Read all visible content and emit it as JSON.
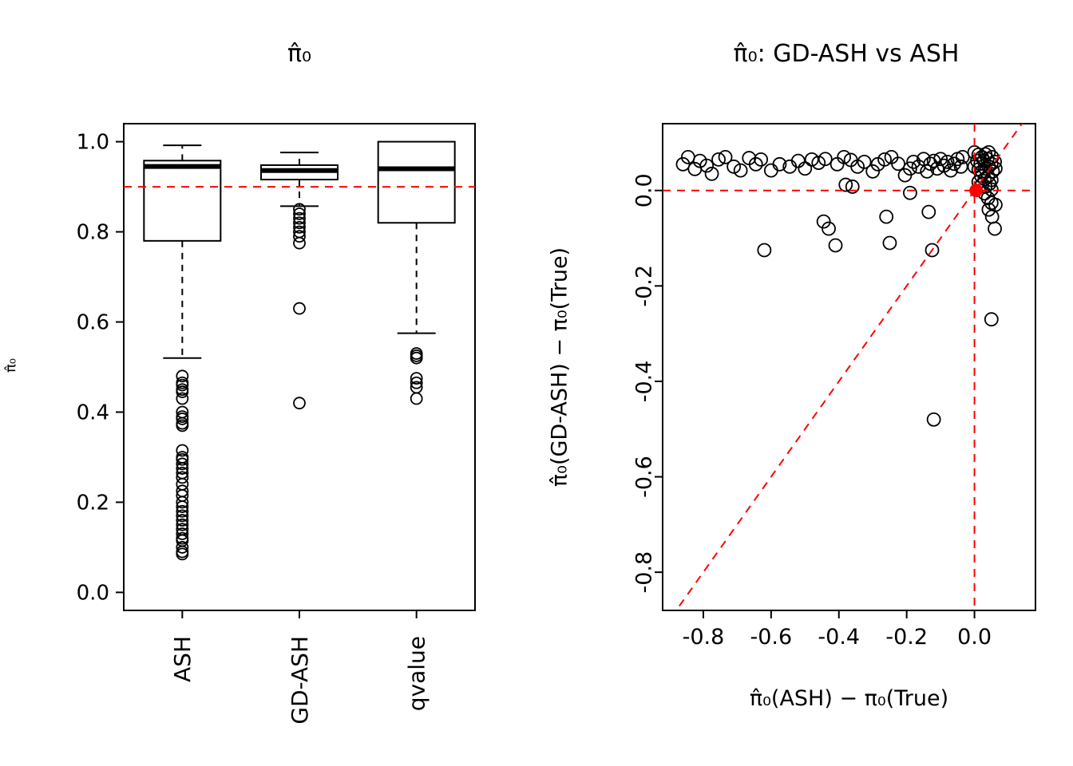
{
  "page": {
    "background": "#ffffff",
    "text_color": "#000000",
    "accent_color": "#ff0000"
  },
  "chart_data": [
    {
      "type": "boxplot",
      "title": "π̂₀",
      "ylabel": "π̂₀",
      "ylim": [
        -0.04,
        1.04
      ],
      "yticks": [
        0.0,
        0.2,
        0.4,
        0.6,
        0.8,
        1.0
      ],
      "categories": [
        "ASH",
        "GD-ASH",
        "qvalue"
      ],
      "reference_line": {
        "y": 0.9,
        "color": "#ff0000",
        "style": "dashed"
      },
      "boxes": [
        {
          "label": "ASH",
          "whisker_low": 0.52,
          "q1": 0.78,
          "median": 0.945,
          "q3": 0.958,
          "whisker_high": 0.992,
          "outliers": [
            0.48,
            0.465,
            0.46,
            0.45,
            0.445,
            0.43,
            0.4,
            0.39,
            0.385,
            0.375,
            0.37,
            0.315,
            0.3,
            0.295,
            0.285,
            0.275,
            0.265,
            0.255,
            0.24,
            0.225,
            0.215,
            0.2,
            0.19,
            0.18,
            0.17,
            0.16,
            0.15,
            0.14,
            0.13,
            0.12,
            0.115,
            0.1,
            0.09,
            0.085
          ]
        },
        {
          "label": "GD-ASH",
          "whisker_low": 0.857,
          "q1": 0.916,
          "median": 0.936,
          "q3": 0.948,
          "whisker_high": 0.976,
          "outliers": [
            0.85,
            0.84,
            0.83,
            0.82,
            0.81,
            0.8,
            0.79,
            0.775,
            0.63,
            0.42
          ]
        },
        {
          "label": "qvalue",
          "whisker_low": 0.575,
          "q1": 0.82,
          "median": 0.94,
          "q3": 1.0,
          "whisker_high": 1.0,
          "outliers": [
            0.53,
            0.525,
            0.52,
            0.475,
            0.465,
            0.455,
            0.43
          ]
        }
      ]
    },
    {
      "type": "scatter",
      "title": "π̂₀: GD-ASH vs ASH",
      "xlabel": "π̂₀(ASH) − π₀(True)",
      "ylabel": "π̂₀(GD-ASH) − π₀(True)",
      "xlim": [
        -0.92,
        0.18
      ],
      "ylim": [
        -0.88,
        0.14
      ],
      "xticks": [
        -0.8,
        -0.6,
        -0.4,
        -0.2,
        0.0
      ],
      "yticks": [
        -0.8,
        -0.6,
        -0.4,
        -0.2,
        0.0
      ],
      "marker": "open-circle",
      "reference_lines": [
        {
          "kind": "horizontal",
          "y": 0.0,
          "color": "#ff0000",
          "style": "dashed"
        },
        {
          "kind": "vertical",
          "x": 0.0,
          "color": "#ff0000",
          "style": "dashed"
        },
        {
          "kind": "diagonal",
          "equation": "y = x",
          "color": "#ff0000",
          "style": "dashed"
        }
      ],
      "points": [
        [
          -0.86,
          0.055
        ],
        [
          -0.845,
          0.07
        ],
        [
          -0.825,
          0.045
        ],
        [
          -0.81,
          0.062
        ],
        [
          -0.79,
          0.052
        ],
        [
          -0.775,
          0.035
        ],
        [
          -0.755,
          0.065
        ],
        [
          -0.735,
          0.07
        ],
        [
          -0.71,
          0.05
        ],
        [
          -0.69,
          0.042
        ],
        [
          -0.665,
          0.068
        ],
        [
          -0.645,
          0.055
        ],
        [
          -0.63,
          0.065
        ],
        [
          -0.6,
          0.042
        ],
        [
          -0.575,
          0.055
        ],
        [
          -0.545,
          0.05
        ],
        [
          -0.52,
          0.062
        ],
        [
          -0.5,
          0.046
        ],
        [
          -0.48,
          0.065
        ],
        [
          -0.46,
          0.058
        ],
        [
          -0.44,
          0.066
        ],
        [
          -0.405,
          0.055
        ],
        [
          -0.385,
          0.07
        ],
        [
          -0.365,
          0.064
        ],
        [
          -0.345,
          0.05
        ],
        [
          -0.325,
          0.06
        ],
        [
          -0.3,
          0.04
        ],
        [
          -0.285,
          0.055
        ],
        [
          -0.265,
          0.065
        ],
        [
          -0.245,
          0.07
        ],
        [
          -0.225,
          0.056
        ],
        [
          -0.205,
          0.032
        ],
        [
          -0.19,
          0.046
        ],
        [
          -0.18,
          0.06
        ],
        [
          -0.165,
          0.05
        ],
        [
          -0.15,
          0.066
        ],
        [
          -0.14,
          0.04
        ],
        [
          -0.13,
          0.056
        ],
        [
          -0.12,
          0.062
        ],
        [
          -0.11,
          0.046
        ],
        [
          -0.1,
          0.066
        ],
        [
          -0.09,
          0.052
        ],
        [
          -0.08,
          0.06
        ],
        [
          -0.07,
          0.042
        ],
        [
          -0.06,
          0.056
        ],
        [
          -0.05,
          0.066
        ],
        [
          -0.04,
          0.05
        ],
        [
          -0.035,
          0.07
        ],
        [
          -0.38,
          0.012
        ],
        [
          -0.36,
          0.008
        ],
        [
          -0.19,
          -0.005
        ],
        [
          0.0,
          0.08
        ],
        [
          0.012,
          0.075
        ],
        [
          0.022,
          0.07
        ],
        [
          0.032,
          0.076
        ],
        [
          0.042,
          0.08
        ],
        [
          0.052,
          0.07
        ],
        [
          0.008,
          0.062
        ],
        [
          0.018,
          0.056
        ],
        [
          0.028,
          0.062
        ],
        [
          0.038,
          0.066
        ],
        [
          0.05,
          0.056
        ],
        [
          0.06,
          0.06
        ],
        [
          0.0,
          0.05
        ],
        [
          0.012,
          0.044
        ],
        [
          0.022,
          0.04
        ],
        [
          0.032,
          0.046
        ],
        [
          0.042,
          0.05
        ],
        [
          0.054,
          0.04
        ],
        [
          0.062,
          0.046
        ],
        [
          0.02,
          0.03
        ],
        [
          0.03,
          0.024
        ],
        [
          0.04,
          0.03
        ],
        [
          0.05,
          0.022
        ],
        [
          0.012,
          0.018
        ],
        [
          0.022,
          0.012
        ],
        [
          0.032,
          0.008
        ],
        [
          0.044,
          0.014
        ],
        [
          0.05,
          0.002
        ],
        [
          0.03,
          -0.006
        ],
        [
          0.04,
          -0.016
        ],
        [
          0.05,
          -0.026
        ],
        [
          0.042,
          -0.04
        ],
        [
          0.052,
          -0.055
        ],
        [
          0.062,
          -0.03
        ],
        [
          -0.62,
          -0.125
        ],
        [
          -0.445,
          -0.065
        ],
        [
          -0.43,
          -0.08
        ],
        [
          -0.41,
          -0.115
        ],
        [
          -0.26,
          -0.055
        ],
        [
          -0.25,
          -0.11
        ],
        [
          -0.135,
          -0.045
        ],
        [
          -0.125,
          -0.125
        ],
        [
          -0.12,
          -0.48
        ],
        [
          0.05,
          -0.27
        ],
        [
          0.06,
          -0.08
        ]
      ],
      "highlight_point": {
        "x": 0.005,
        "y": 0.0,
        "color": "#ff0000"
      }
    }
  ]
}
